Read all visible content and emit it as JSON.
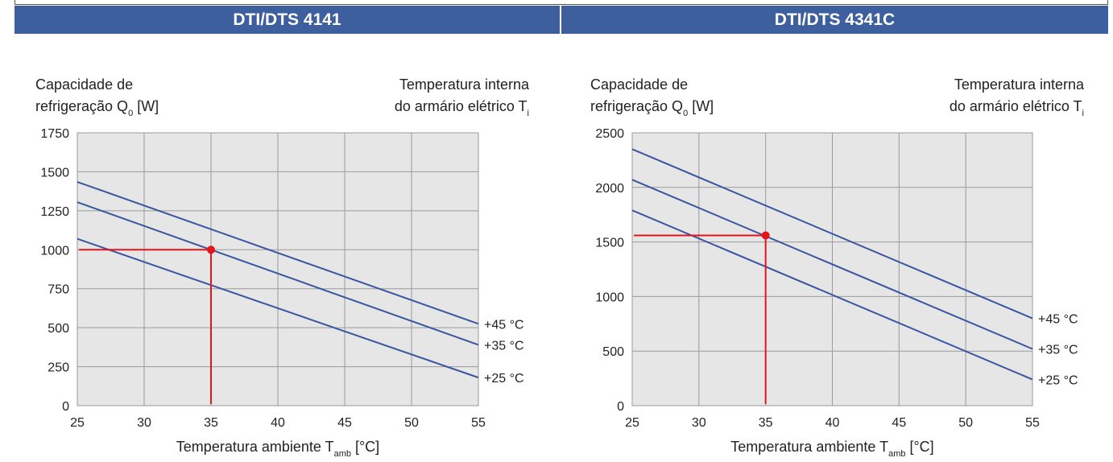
{
  "chart_data": [
    {
      "type": "line",
      "title": "DTI/DTS 4141",
      "ylabel_line1": "Capacidade de",
      "ylabel_line2": "refrigeração Q",
      "ylabel_sub": "0",
      "ylabel_unit": " [W]",
      "legend_title_line1": "Temperatura interna",
      "legend_title_line2": "do armário elétrico T",
      "legend_title_sub": "i",
      "xlabel": "Temperatura ambiente T",
      "xlabel_sub": "amb",
      "xlabel_unit": " [°C]",
      "xlim": [
        25,
        55
      ],
      "ylim": [
        0,
        1750
      ],
      "xticks": [
        25,
        30,
        35,
        40,
        45,
        50,
        55
      ],
      "yticks": [
        0,
        250,
        500,
        750,
        1000,
        1250,
        1500,
        1750
      ],
      "grid": true,
      "series": [
        {
          "name": "+45 °C",
          "x": [
            25,
            55
          ],
          "y": [
            1435,
            525
          ]
        },
        {
          "name": "+35 °C",
          "x": [
            25,
            55
          ],
          "y": [
            1305,
            390
          ]
        },
        {
          "name": "+25 °C",
          "x": [
            25,
            55
          ],
          "y": [
            1070,
            180
          ]
        }
      ],
      "marker": {
        "x": 35,
        "y": 1000
      }
    },
    {
      "type": "line",
      "title": "DTI/DTS 4341C",
      "ylabel_line1": "Capacidade de",
      "ylabel_line2": "refrigeração Q",
      "ylabel_sub": "0",
      "ylabel_unit": " [W]",
      "legend_title_line1": "Temperatura interna",
      "legend_title_line2": "do armário elétrico T",
      "legend_title_sub": "i",
      "xlabel": "Temperatura ambiente T",
      "xlabel_sub": "amb",
      "xlabel_unit": " [°C]",
      "xlim": [
        25,
        55
      ],
      "ylim": [
        0,
        2500
      ],
      "xticks": [
        25,
        30,
        35,
        40,
        45,
        50,
        55
      ],
      "yticks": [
        0,
        500,
        1000,
        1500,
        2000,
        2500
      ],
      "grid": true,
      "series": [
        {
          "name": "+45 °C",
          "x": [
            25,
            55
          ],
          "y": [
            2350,
            800
          ]
        },
        {
          "name": "+35 °C",
          "x": [
            25,
            55
          ],
          "y": [
            2070,
            520
          ]
        },
        {
          "name": "+25 °C",
          "x": [
            25,
            55
          ],
          "y": [
            1790,
            240
          ]
        }
      ],
      "marker": {
        "x": 35,
        "y": 1560
      }
    }
  ],
  "colors": {
    "band": "#3d5f9e",
    "line": "#3a56a0",
    "marker": "#e4141b",
    "plot_bg": "#e6e6e6",
    "grid": "#9a9a9a"
  }
}
